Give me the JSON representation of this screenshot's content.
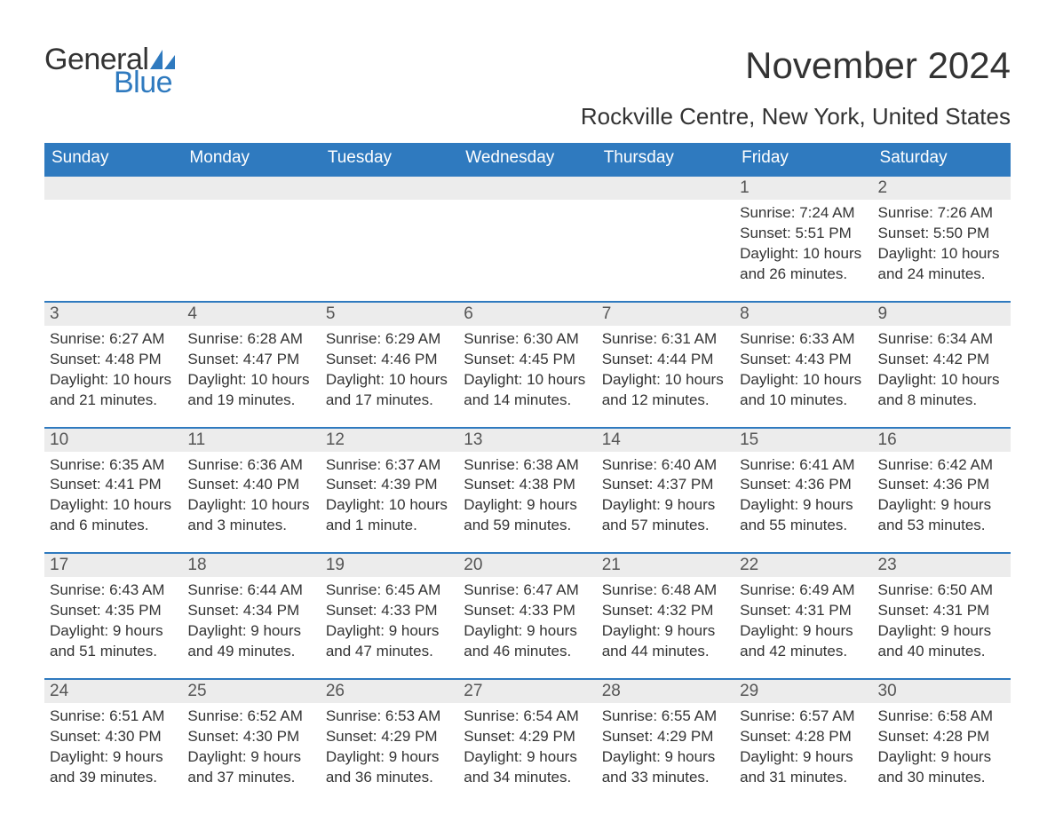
{
  "logo": {
    "text_general": "General",
    "text_blue": "Blue",
    "sail_color": "#2f7abf"
  },
  "title": "November 2024",
  "location": "Rockville Centre, New York, United States",
  "colors": {
    "header_bg": "#2f7abf",
    "header_text": "#ffffff",
    "daynum_bg": "#ececec",
    "body_text": "#333333",
    "rule": "#2f7abf"
  },
  "day_headers": [
    "Sunday",
    "Monday",
    "Tuesday",
    "Wednesday",
    "Thursday",
    "Friday",
    "Saturday"
  ],
  "weeks": [
    [
      null,
      null,
      null,
      null,
      null,
      {
        "n": "1",
        "sunrise": "Sunrise: 7:24 AM",
        "sunset": "Sunset: 5:51 PM",
        "day1": "Daylight: 10 hours",
        "day2": "and 26 minutes."
      },
      {
        "n": "2",
        "sunrise": "Sunrise: 7:26 AM",
        "sunset": "Sunset: 5:50 PM",
        "day1": "Daylight: 10 hours",
        "day2": "and 24 minutes."
      }
    ],
    [
      {
        "n": "3",
        "sunrise": "Sunrise: 6:27 AM",
        "sunset": "Sunset: 4:48 PM",
        "day1": "Daylight: 10 hours",
        "day2": "and 21 minutes."
      },
      {
        "n": "4",
        "sunrise": "Sunrise: 6:28 AM",
        "sunset": "Sunset: 4:47 PM",
        "day1": "Daylight: 10 hours",
        "day2": "and 19 minutes."
      },
      {
        "n": "5",
        "sunrise": "Sunrise: 6:29 AM",
        "sunset": "Sunset: 4:46 PM",
        "day1": "Daylight: 10 hours",
        "day2": "and 17 minutes."
      },
      {
        "n": "6",
        "sunrise": "Sunrise: 6:30 AM",
        "sunset": "Sunset: 4:45 PM",
        "day1": "Daylight: 10 hours",
        "day2": "and 14 minutes."
      },
      {
        "n": "7",
        "sunrise": "Sunrise: 6:31 AM",
        "sunset": "Sunset: 4:44 PM",
        "day1": "Daylight: 10 hours",
        "day2": "and 12 minutes."
      },
      {
        "n": "8",
        "sunrise": "Sunrise: 6:33 AM",
        "sunset": "Sunset: 4:43 PM",
        "day1": "Daylight: 10 hours",
        "day2": "and 10 minutes."
      },
      {
        "n": "9",
        "sunrise": "Sunrise: 6:34 AM",
        "sunset": "Sunset: 4:42 PM",
        "day1": "Daylight: 10 hours",
        "day2": "and 8 minutes."
      }
    ],
    [
      {
        "n": "10",
        "sunrise": "Sunrise: 6:35 AM",
        "sunset": "Sunset: 4:41 PM",
        "day1": "Daylight: 10 hours",
        "day2": "and 6 minutes."
      },
      {
        "n": "11",
        "sunrise": "Sunrise: 6:36 AM",
        "sunset": "Sunset: 4:40 PM",
        "day1": "Daylight: 10 hours",
        "day2": "and 3 minutes."
      },
      {
        "n": "12",
        "sunrise": "Sunrise: 6:37 AM",
        "sunset": "Sunset: 4:39 PM",
        "day1": "Daylight: 10 hours",
        "day2": "and 1 minute."
      },
      {
        "n": "13",
        "sunrise": "Sunrise: 6:38 AM",
        "sunset": "Sunset: 4:38 PM",
        "day1": "Daylight: 9 hours",
        "day2": "and 59 minutes."
      },
      {
        "n": "14",
        "sunrise": "Sunrise: 6:40 AM",
        "sunset": "Sunset: 4:37 PM",
        "day1": "Daylight: 9 hours",
        "day2": "and 57 minutes."
      },
      {
        "n": "15",
        "sunrise": "Sunrise: 6:41 AM",
        "sunset": "Sunset: 4:36 PM",
        "day1": "Daylight: 9 hours",
        "day2": "and 55 minutes."
      },
      {
        "n": "16",
        "sunrise": "Sunrise: 6:42 AM",
        "sunset": "Sunset: 4:36 PM",
        "day1": "Daylight: 9 hours",
        "day2": "and 53 minutes."
      }
    ],
    [
      {
        "n": "17",
        "sunrise": "Sunrise: 6:43 AM",
        "sunset": "Sunset: 4:35 PM",
        "day1": "Daylight: 9 hours",
        "day2": "and 51 minutes."
      },
      {
        "n": "18",
        "sunrise": "Sunrise: 6:44 AM",
        "sunset": "Sunset: 4:34 PM",
        "day1": "Daylight: 9 hours",
        "day2": "and 49 minutes."
      },
      {
        "n": "19",
        "sunrise": "Sunrise: 6:45 AM",
        "sunset": "Sunset: 4:33 PM",
        "day1": "Daylight: 9 hours",
        "day2": "and 47 minutes."
      },
      {
        "n": "20",
        "sunrise": "Sunrise: 6:47 AM",
        "sunset": "Sunset: 4:33 PM",
        "day1": "Daylight: 9 hours",
        "day2": "and 46 minutes."
      },
      {
        "n": "21",
        "sunrise": "Sunrise: 6:48 AM",
        "sunset": "Sunset: 4:32 PM",
        "day1": "Daylight: 9 hours",
        "day2": "and 44 minutes."
      },
      {
        "n": "22",
        "sunrise": "Sunrise: 6:49 AM",
        "sunset": "Sunset: 4:31 PM",
        "day1": "Daylight: 9 hours",
        "day2": "and 42 minutes."
      },
      {
        "n": "23",
        "sunrise": "Sunrise: 6:50 AM",
        "sunset": "Sunset: 4:31 PM",
        "day1": "Daylight: 9 hours",
        "day2": "and 40 minutes."
      }
    ],
    [
      {
        "n": "24",
        "sunrise": "Sunrise: 6:51 AM",
        "sunset": "Sunset: 4:30 PM",
        "day1": "Daylight: 9 hours",
        "day2": "and 39 minutes."
      },
      {
        "n": "25",
        "sunrise": "Sunrise: 6:52 AM",
        "sunset": "Sunset: 4:30 PM",
        "day1": "Daylight: 9 hours",
        "day2": "and 37 minutes."
      },
      {
        "n": "26",
        "sunrise": "Sunrise: 6:53 AM",
        "sunset": "Sunset: 4:29 PM",
        "day1": "Daylight: 9 hours",
        "day2": "and 36 minutes."
      },
      {
        "n": "27",
        "sunrise": "Sunrise: 6:54 AM",
        "sunset": "Sunset: 4:29 PM",
        "day1": "Daylight: 9 hours",
        "day2": "and 34 minutes."
      },
      {
        "n": "28",
        "sunrise": "Sunrise: 6:55 AM",
        "sunset": "Sunset: 4:29 PM",
        "day1": "Daylight: 9 hours",
        "day2": "and 33 minutes."
      },
      {
        "n": "29",
        "sunrise": "Sunrise: 6:57 AM",
        "sunset": "Sunset: 4:28 PM",
        "day1": "Daylight: 9 hours",
        "day2": "and 31 minutes."
      },
      {
        "n": "30",
        "sunrise": "Sunrise: 6:58 AM",
        "sunset": "Sunset: 4:28 PM",
        "day1": "Daylight: 9 hours",
        "day2": "and 30 minutes."
      }
    ]
  ]
}
